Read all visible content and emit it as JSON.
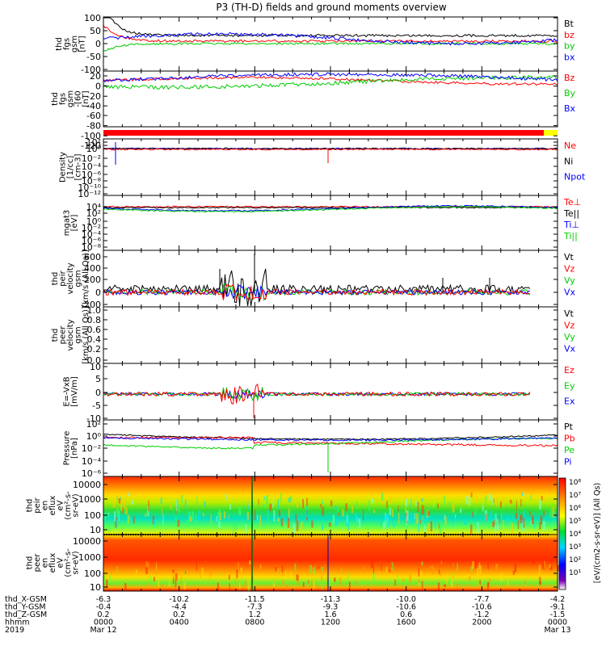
{
  "title": "P3 (TH-D) fields and ground moments overview",
  "colors": {
    "black": "#000000",
    "red": "#ff0000",
    "green": "#00cc00",
    "blue": "#0000ff",
    "yellow": "#ffff00"
  },
  "panels": [
    {
      "id": "fgs_gsm",
      "ylabel": [
        "thd",
        "fgs",
        "gsm",
        "[nT]"
      ],
      "ticks": [
        "100",
        "50",
        "0",
        "-50",
        "-100"
      ],
      "legend": [
        {
          "text": "Bt",
          "color": "black"
        },
        {
          "text": "bz",
          "color": "red"
        },
        {
          "text": "by",
          "color": "green"
        },
        {
          "text": "bx",
          "color": "blue"
        }
      ]
    },
    {
      "id": "fgs_gsm_zoom",
      "ylabel": [
        "thd",
        "fgs",
        "gsm",
        "-[60",
        "[nT]"
      ],
      "ticks": [
        "20",
        "0",
        "-20",
        "-40",
        "-60",
        "-80",
        "-100",
        "-120"
      ],
      "legend": [
        {
          "text": "Bz",
          "color": "red"
        },
        {
          "text": "By",
          "color": "green"
        },
        {
          "text": "Bx",
          "color": "blue"
        }
      ]
    },
    {
      "id": "density",
      "ylabel": [
        "Density",
        "[1/cc]",
        "[cm-3]"
      ],
      "ticks": [
        "10²",
        "10⁰",
        "10⁻²",
        "10⁻⁴",
        "10⁻⁶",
        "10⁻⁸",
        "10⁻¹⁰",
        "10⁻¹²"
      ],
      "legend": [
        {
          "text": "Ne",
          "color": "red"
        },
        {
          "text": "Ni",
          "color": "black"
        },
        {
          "text": "Npot",
          "color": "blue"
        }
      ]
    },
    {
      "id": "temperature",
      "ylabel": [
        "mgat3",
        "[eV]"
      ],
      "ticks": [
        "10⁴",
        "10²",
        "10⁰",
        "10⁻²",
        "10⁻⁴",
        "10⁻⁶",
        "10⁻⁸"
      ],
      "legend": [
        {
          "text": "Te⊥",
          "color": "red"
        },
        {
          "text": "Te||",
          "color": "black"
        },
        {
          "text": "Ti⊥",
          "color": "blue"
        },
        {
          "text": "Ti||",
          "color": "green"
        }
      ]
    },
    {
      "id": "peir_velocity",
      "ylabel": [
        "thd",
        "peir",
        "velocity",
        "gsm",
        "[km/s (All Qs)]"
      ],
      "ticks": [
        "600",
        "400",
        "200",
        "0",
        "-200"
      ],
      "legend": [
        {
          "text": "Vt",
          "color": "black"
        },
        {
          "text": "Vz",
          "color": "red"
        },
        {
          "text": "Vy",
          "color": "green"
        },
        {
          "text": "Vx",
          "color": "blue"
        }
      ]
    },
    {
      "id": "peer_velocity",
      "ylabel": [
        "thd",
        "peer",
        "velocity",
        "gsm",
        "[km/s (All Qs)]"
      ],
      "ticks": [
        "1.0",
        "0.8",
        "0.6",
        "0.4",
        "0.2",
        "0.0"
      ],
      "legend": [
        {
          "text": "Vt",
          "color": "black"
        },
        {
          "text": "Vz",
          "color": "red"
        },
        {
          "text": "Vy",
          "color": "green"
        },
        {
          "text": "Vx",
          "color": "blue"
        }
      ]
    },
    {
      "id": "e_field",
      "ylabel": [
        "E=-VxB",
        "[mV/m]"
      ],
      "ticks": [
        "10",
        "5",
        "0",
        "-5",
        "-10"
      ],
      "legend": [
        {
          "text": "Ez",
          "color": "red"
        },
        {
          "text": "Ey",
          "color": "green"
        },
        {
          "text": "Ex",
          "color": "blue"
        }
      ]
    },
    {
      "id": "pressure",
      "ylabel": [
        "Pressure",
        "[nPa]"
      ],
      "ticks": [
        "10²",
        "10⁰",
        "10⁻²",
        "10⁻⁴",
        "10⁻⁶"
      ],
      "legend": [
        {
          "text": "Pt",
          "color": "black"
        },
        {
          "text": "Pb",
          "color": "red"
        },
        {
          "text": "Pe",
          "color": "green"
        },
        {
          "text": "Pi",
          "color": "blue"
        }
      ]
    },
    {
      "id": "peir_eflux",
      "ylabel": [
        "thd",
        "peir",
        "en",
        "eflux",
        "eV",
        "(cm²-s-",
        "sr-eV)"
      ],
      "ticks": [
        "10000",
        "1000",
        "100",
        "10"
      ],
      "legend": []
    },
    {
      "id": "peer_eflux",
      "ylabel": [
        "thd",
        "peer",
        "en",
        "eflux",
        "eV",
        "(cm²-s-",
        "sr-eV)"
      ],
      "ticks": [
        "10000",
        "1000",
        "100",
        "10"
      ],
      "legend": []
    }
  ],
  "colorbar": {
    "ticks": [
      "10⁸",
      "10⁷",
      "10⁶",
      "10⁵",
      "10⁴",
      "10³",
      "10²",
      "10¹"
    ],
    "label": "[eV/(cm2-s-sr-eV)] (All Qs)"
  },
  "x_axis": {
    "rows": [
      {
        "label": "thd_X-GSM",
        "values": [
          "-6.3",
          "-10.2",
          "-11.5",
          "-11.3",
          "-10.0",
          "-7.7",
          "-4.2"
        ]
      },
      {
        "label": "thd_Y-GSM",
        "values": [
          "-0.4",
          "-4.4",
          "-7.3",
          "-9.3",
          "-10.6",
          "-10.6",
          "-9.1"
        ]
      },
      {
        "label": "thd_Z-GSM",
        "values": [
          "0.2",
          "0.2",
          "1.2",
          "1.6",
          "0.6",
          "-1.2",
          "-1.5"
        ]
      },
      {
        "label": "hhmm",
        "values": [
          "0000",
          "0400",
          "0800",
          "1200",
          "1600",
          "2000",
          "0000"
        ]
      }
    ],
    "year": "2019",
    "date_start": "Mar 12",
    "date_end": "Mar 13"
  },
  "chart_data": {
    "type": "line",
    "title": "P3 (TH-D) fields and ground moments overview",
    "x_start": "2019-03-12 00:00",
    "x_end": "2019-03-13 00:00",
    "x_tick_times": [
      "0000",
      "0400",
      "0800",
      "1200",
      "1600",
      "2000",
      "0000"
    ],
    "panels": [
      {
        "name": "fgs gsm",
        "ylim": [
          -100,
          100
        ],
        "series": [
          "Bt",
          "bz",
          "by",
          "bx"
        ]
      },
      {
        "name": "fgs gsm zoom",
        "ylim": [
          -130,
          30
        ],
        "series": [
          "Bz",
          "By",
          "Bx"
        ]
      },
      {
        "name": "Density",
        "scale": "log",
        "ylim": [
          "1e-12",
          "1e2"
        ],
        "series": [
          "Ne",
          "Ni",
          "Npot"
        ]
      },
      {
        "name": "mgat3",
        "scale": "log",
        "ylim": [
          "1e-8",
          "1e4"
        ],
        "series": [
          "Te⊥",
          "Te||",
          "Ti⊥",
          "Ti||"
        ]
      },
      {
        "name": "peir velocity",
        "ylim": [
          -200,
          600
        ],
        "series": [
          "Vt",
          "Vz",
          "Vy",
          "Vx"
        ]
      },
      {
        "name": "peer velocity",
        "ylim": [
          0,
          1
        ],
        "series": [
          "Vt",
          "Vz",
          "Vy",
          "Vx"
        ]
      },
      {
        "name": "E=-VxB",
        "ylim": [
          -10,
          10
        ],
        "series": [
          "Ez",
          "Ey",
          "Ex"
        ]
      },
      {
        "name": "Pressure",
        "scale": "log",
        "ylim": [
          "1e-6",
          "1e2"
        ],
        "series": [
          "Pt",
          "Pb",
          "Pe",
          "Pi"
        ]
      },
      {
        "name": "peir en eflux",
        "type": "heatmap",
        "scale": "log",
        "ylim": [
          5,
          20000
        ]
      },
      {
        "name": "peer en eflux",
        "type": "heatmap",
        "scale": "log",
        "ylim": [
          5,
          20000
        ]
      }
    ]
  }
}
